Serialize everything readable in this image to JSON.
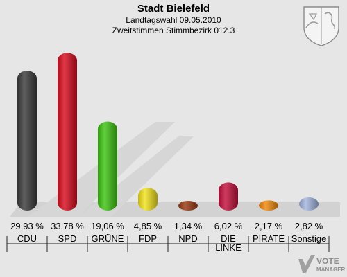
{
  "header": {
    "title": "Stadt Bielefeld",
    "subtitle1": "Landtagswahl 09.05.2010",
    "subtitle2": "Zweitstimmen Stimmbezirk 012.3"
  },
  "logo": {
    "text1": "VOTE",
    "text2": "MANAGER"
  },
  "icons": {
    "crest": "coat-of-arms-icon",
    "logo": "vote-manager-logo-icon"
  },
  "chart_data": {
    "type": "bar",
    "categories": [
      "CDU",
      "SPD",
      "GRÜNE",
      "FDP",
      "NPD",
      "DIE LINKE",
      "PIRATE",
      "Sonstige"
    ],
    "values": [
      29.93,
      33.78,
      19.06,
      4.85,
      1.34,
      6.02,
      2.17,
      2.82
    ],
    "value_labels": [
      "29,93 %",
      "33,78 %",
      "19,06 %",
      "4,85 %",
      "1,34 %",
      "6,02 %",
      "2,17 %",
      "2,82 %"
    ],
    "colors": [
      "#3c3c3c",
      "#d90c1e",
      "#3ec413",
      "#f2e21c",
      "#9a3a12",
      "#c4103c",
      "#f08a0a",
      "#a3b5e0"
    ],
    "ylim": [
      0,
      35
    ],
    "grid": false,
    "legend": "none"
  }
}
